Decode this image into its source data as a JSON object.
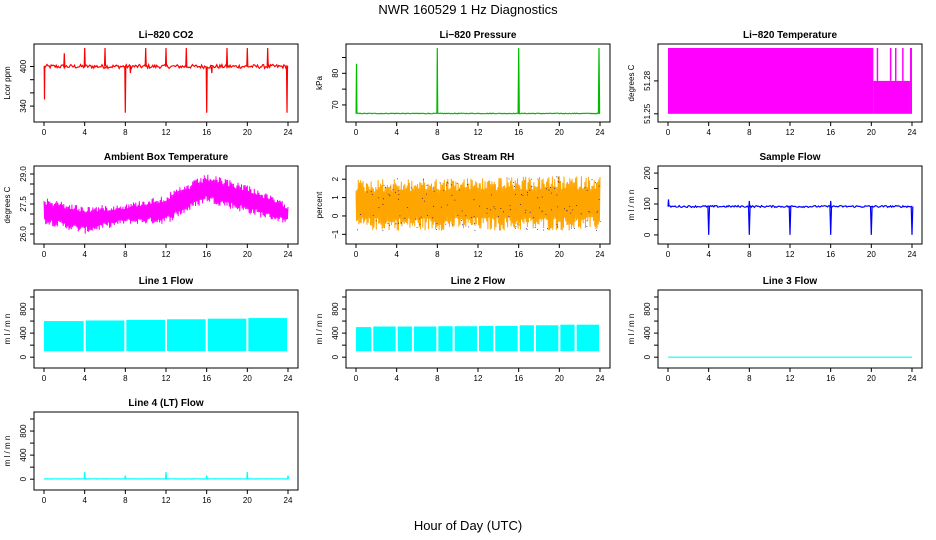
{
  "title": "NWR  160529  1 Hz Diagnostics",
  "xlabel": "Hour of Day (UTC)",
  "chart_data": [
    {
      "type": "line",
      "title": "Li−820 CO2",
      "ylabel": "Lcor ppm",
      "xlim": [
        0,
        24
      ],
      "ylim": [
        325,
        428
      ],
      "x_ticks": [
        0,
        4,
        8,
        12,
        16,
        20,
        24
      ],
      "y_ticks": [
        340,
        360,
        380,
        400
      ],
      "y_ticklabels": [
        "340",
        "",
        "",
        "400"
      ],
      "color": "#ff0000",
      "pattern": "spikes",
      "base": 400,
      "noise": 3,
      "events": [
        [
          0.05,
          400,
          350,
          0.03
        ],
        [
          2,
          400,
          420,
          0.05
        ],
        [
          4,
          400,
          428,
          0.05
        ],
        [
          6,
          400,
          428,
          0.05
        ],
        [
          8,
          400,
          330,
          0.05
        ],
        [
          8.5,
          400,
          390,
          0.05
        ],
        [
          10,
          400,
          428,
          0.05
        ],
        [
          12,
          400,
          428,
          0.05
        ],
        [
          14,
          400,
          428,
          0.05
        ],
        [
          16,
          400,
          330,
          0.05
        ],
        [
          16.5,
          400,
          390,
          0.05
        ],
        [
          18,
          400,
          428,
          0.05
        ],
        [
          20,
          400,
          428,
          0.05
        ],
        [
          22,
          400,
          428,
          0.05
        ],
        [
          23.9,
          400,
          330,
          0.05
        ]
      ]
    },
    {
      "type": "line",
      "title": "Li−820 Pressure",
      "ylabel": "kPa",
      "xlim": [
        0,
        24
      ],
      "ylim": [
        66.5,
        88
      ],
      "x_ticks": [
        0,
        4,
        8,
        12,
        16,
        20,
        24
      ],
      "y_ticks": [
        70,
        75,
        80,
        85
      ],
      "y_ticklabels": [
        "70",
        "",
        "80",
        ""
      ],
      "color": "#00bb00",
      "pattern": "spikes",
      "base": 67.3,
      "noise": 0.1,
      "events": [
        [
          0.05,
          67.3,
          83,
          0.04
        ],
        [
          8,
          67.3,
          88,
          0.04
        ],
        [
          16,
          67.3,
          88,
          0.06
        ],
        [
          23.9,
          67.3,
          88,
          0.06
        ]
      ]
    },
    {
      "type": "line",
      "title": "Li−820 Temperature",
      "ylabel": "degrees C",
      "xlim": [
        0,
        24
      ],
      "ylim": [
        51.248,
        51.31
      ],
      "x_ticks": [
        0,
        4,
        8,
        12,
        16,
        20,
        24
      ],
      "y_ticks": [
        51.25,
        51.28
      ],
      "y_ticklabels": [
        "51.25",
        "51.28"
      ],
      "color": "#ff00ff",
      "pattern": "band",
      "band": [
        [
          0,
          51.25,
          51.31
        ],
        [
          20.2,
          51.25,
          51.28
        ],
        [
          23.8,
          51.25,
          51.31
        ]
      ]
    },
    {
      "type": "line",
      "title": "Ambient Box Temperature",
      "ylabel": "degrees C",
      "xlim": [
        0,
        24
      ],
      "ylim": [
        25.8,
        29.2
      ],
      "x_ticks": [
        0,
        4,
        8,
        12,
        16,
        20,
        24
      ],
      "y_ticks": [
        26.0,
        26.5,
        27.0,
        27.5,
        28.0,
        28.5,
        29.0
      ],
      "y_ticklabels": [
        "26.0",
        "",
        "",
        "27.5",
        "",
        "",
        "29.0"
      ],
      "color": "#ff00ff",
      "pattern": "envelope",
      "env": [
        [
          0,
          26.5,
          27.8
        ],
        [
          4,
          26.0,
          27.4
        ],
        [
          8,
          26.5,
          27.5
        ],
        [
          12,
          26.5,
          28.0
        ],
        [
          16,
          27.6,
          29.0
        ],
        [
          20,
          27.0,
          28.5
        ],
        [
          24,
          26.5,
          27.5
        ]
      ]
    },
    {
      "type": "line",
      "title": "Gas Stream RH",
      "ylabel": "percent",
      "xlim": [
        0,
        24
      ],
      "ylim": [
        -1.2,
        2.5
      ],
      "x_ticks": [
        0,
        4,
        8,
        12,
        16,
        20,
        24
      ],
      "y_ticks": [
        -1,
        0,
        1,
        2
      ],
      "y_ticklabels": [
        "−1",
        "0",
        "1",
        "2"
      ],
      "color": "#ffa500",
      "dot_color": "#000080",
      "pattern": "envelope",
      "env": [
        [
          0,
          -0.8,
          2.0
        ],
        [
          24,
          -0.8,
          2.2
        ]
      ]
    },
    {
      "type": "line",
      "title": "Sample Flow",
      "ylabel": "m l / m n",
      "xlim": [
        0,
        24
      ],
      "ylim": [
        -10,
        210
      ],
      "x_ticks": [
        0,
        4,
        8,
        12,
        16,
        20,
        24
      ],
      "y_ticks": [
        0,
        50,
        100,
        150,
        200
      ],
      "y_ticklabels": [
        "0",
        "",
        "100",
        "",
        "200"
      ],
      "color": "#0000ff",
      "pattern": "spikes",
      "base": 92,
      "noise": 3,
      "events": [
        [
          0.05,
          92,
          115,
          0.05
        ],
        [
          4,
          92,
          0,
          0.08
        ],
        [
          8,
          92,
          0,
          0.08
        ],
        [
          8,
          92,
          110,
          0.04
        ],
        [
          12,
          92,
          0,
          0.08
        ],
        [
          16,
          92,
          0,
          0.08
        ],
        [
          16,
          92,
          110,
          0.04
        ],
        [
          20,
          92,
          0,
          0.08
        ],
        [
          24,
          92,
          0,
          0.08
        ]
      ]
    },
    {
      "type": "line",
      "title": "Line 1 Flow",
      "ylabel": "m l / m n",
      "xlim": [
        0,
        24
      ],
      "ylim": [
        -80,
        1050
      ],
      "x_ticks": [
        0,
        4,
        8,
        12,
        16,
        20,
        24
      ],
      "y_ticks": [
        0,
        200,
        400,
        600,
        800,
        1000
      ],
      "y_ticklabels": [
        "0",
        "",
        "400",
        "",
        "800",
        ""
      ],
      "color": "#00ffff",
      "pattern": "segments",
      "seg_lo": 100,
      "segments": [
        [
          0,
          3.9,
          600
        ],
        [
          4.1,
          7.9,
          610
        ],
        [
          8.1,
          11.9,
          620
        ],
        [
          12.1,
          15.9,
          630
        ],
        [
          16.1,
          19.9,
          640
        ],
        [
          20.1,
          23.9,
          650
        ]
      ]
    },
    {
      "type": "line",
      "title": "Line 2 Flow",
      "ylabel": "m l / m n",
      "xlim": [
        0,
        24
      ],
      "ylim": [
        -80,
        1050
      ],
      "x_ticks": [
        0,
        4,
        8,
        12,
        16,
        20,
        24
      ],
      "y_ticks": [
        0,
        200,
        400,
        600,
        800,
        1000
      ],
      "y_ticklabels": [
        "0",
        "",
        "400",
        "",
        "800",
        ""
      ],
      "color": "#00ffff",
      "pattern": "segments",
      "seg_lo": 100,
      "segments": [
        [
          0,
          1.5,
          500
        ],
        [
          1.7,
          3.9,
          510
        ],
        [
          4.1,
          5.5,
          510
        ],
        [
          5.7,
          7.9,
          510
        ],
        [
          8.1,
          9.5,
          515
        ],
        [
          9.7,
          11.9,
          515
        ],
        [
          12.1,
          13.5,
          520
        ],
        [
          13.7,
          15.9,
          520
        ],
        [
          16.1,
          17.5,
          530
        ],
        [
          17.7,
          19.9,
          530
        ],
        [
          20.1,
          21.5,
          540
        ],
        [
          21.7,
          23.9,
          540
        ]
      ]
    },
    {
      "type": "line",
      "title": "Line 3 Flow",
      "ylabel": "m l / m n",
      "xlim": [
        0,
        24
      ],
      "ylim": [
        -80,
        1050
      ],
      "x_ticks": [
        0,
        4,
        8,
        12,
        16,
        20,
        24
      ],
      "y_ticks": [
        0,
        200,
        400,
        600,
        800,
        1000
      ],
      "y_ticklabels": [
        "0",
        "",
        "400",
        "",
        "800",
        ""
      ],
      "color": "#00ffff",
      "pattern": "spikes",
      "base": 0,
      "noise": 0,
      "events": []
    },
    {
      "type": "line",
      "title": "Line 4 (LT) Flow",
      "ylabel": "m l / m n",
      "xlim": [
        0,
        24
      ],
      "ylim": [
        -80,
        1050
      ],
      "x_ticks": [
        0,
        4,
        8,
        12,
        16,
        20,
        24
      ],
      "y_ticks": [
        0,
        200,
        400,
        600,
        800,
        1000
      ],
      "y_ticklabels": [
        "0",
        "",
        "400",
        "",
        "800",
        ""
      ],
      "color": "#00ffff",
      "pattern": "spikes",
      "base": 5,
      "noise": 2,
      "events": [
        [
          4,
          5,
          120,
          0.05
        ],
        [
          8,
          5,
          60,
          0.05
        ],
        [
          12,
          5,
          120,
          0.05
        ],
        [
          16,
          5,
          60,
          0.05
        ],
        [
          20,
          5,
          120,
          0.05
        ],
        [
          24,
          5,
          60,
          0.05
        ]
      ]
    }
  ]
}
